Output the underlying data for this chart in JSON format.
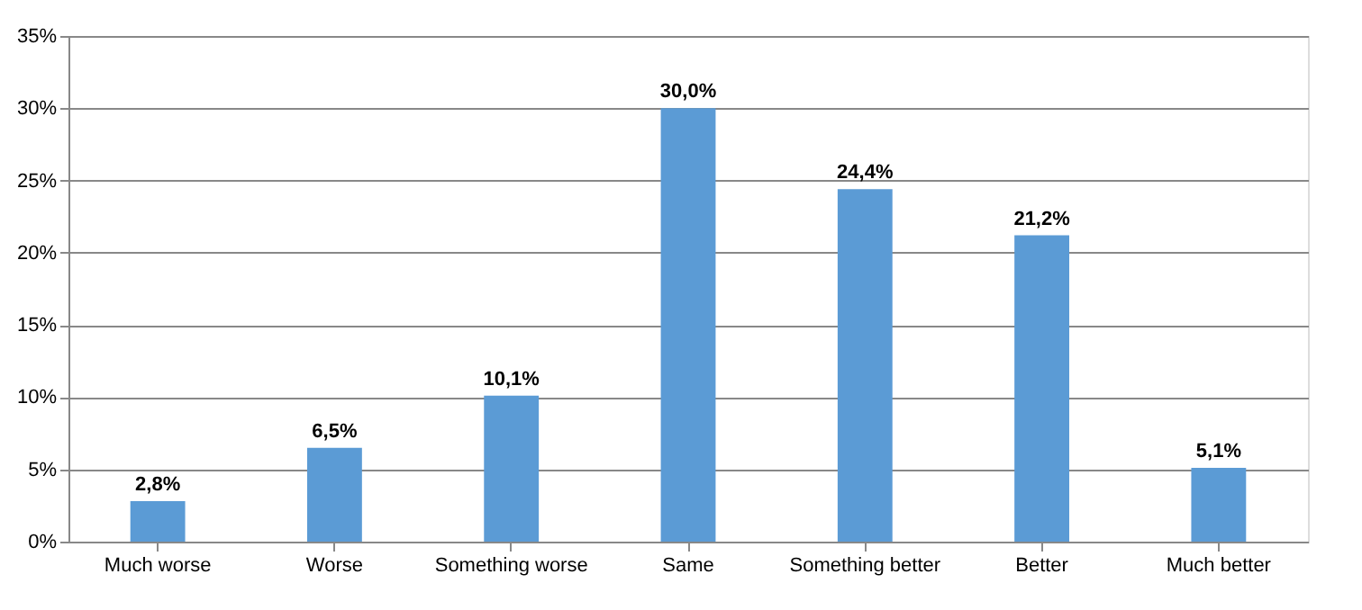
{
  "chart_data": {
    "type": "bar",
    "categories": [
      "Much worse",
      "Worse",
      "Something worse",
      "Same",
      "Something better",
      "Better",
      "Much better"
    ],
    "values": [
      2.8,
      6.5,
      10.1,
      30.0,
      24.4,
      21.2,
      5.1
    ],
    "value_labels": [
      "2,8%",
      "6,5%",
      "10,1%",
      "30,0%",
      "24,4%",
      "21,2%",
      "5,1%"
    ],
    "color": "#5b9bd5",
    "ylim": [
      0,
      35
    ],
    "yticks": [
      {
        "value": 0,
        "label": "0%"
      },
      {
        "value": 5,
        "label": "5%"
      },
      {
        "value": 10,
        "label": "10%"
      },
      {
        "value": 15,
        "label": "15%"
      },
      {
        "value": 20,
        "label": "20%"
      },
      {
        "value": 25,
        "label": "25%"
      },
      {
        "value": 30,
        "label": "30%"
      },
      {
        "value": 35,
        "label": "35%"
      }
    ],
    "grid": "y"
  }
}
